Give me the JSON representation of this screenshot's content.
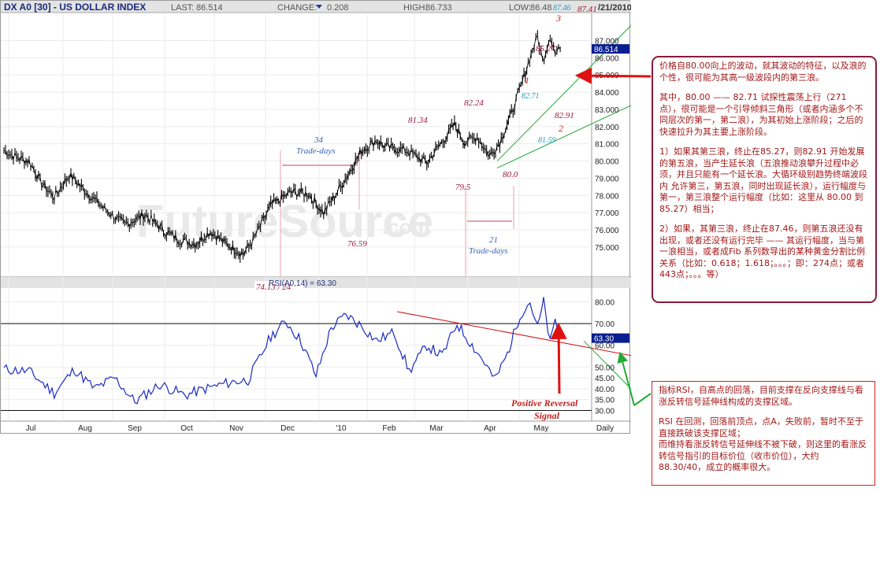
{
  "header": {
    "symbol": "DX A0 [30] - US DOLLAR INDEX",
    "last_label": "LAST:",
    "last_value": "86.514",
    "change_label": "CHANGE:",
    "change_value": "0.208",
    "high_label": "HIGH:",
    "high_value": "86.733",
    "low_label": "LOW:",
    "low_value": "86.48",
    "date": "/21/2010"
  },
  "watermark": {
    "main": "FutureSource",
    "suffix": ".com"
  },
  "colors": {
    "price": "#000000",
    "rsi": "#1a2bc2",
    "resistance": "#cc1111",
    "trend": "#22aa33",
    "annotation": "#a0183a",
    "measure": "#e6a0b0"
  },
  "chart_data": [
    {
      "type": "line",
      "name": "price",
      "x_labels": [
        "Jul",
        "Aug",
        "Sep",
        "Oct",
        "Nov",
        "Dec",
        "'10",
        "Feb",
        "Mar",
        "Apr",
        "May",
        "Daily"
      ],
      "y_ticks": [
        "87.000",
        "86.000",
        "85.000",
        "84.000",
        "83.000",
        "82.000",
        "81.000",
        "80.000",
        "79.000",
        "78.000",
        "77.000",
        "76.000",
        "75.000"
      ],
      "ylim": [
        74.4,
        87.8
      ],
      "last_tag": "86.514",
      "key_points": [
        {
          "month_index": 0.0,
          "value": 80.6
        },
        {
          "month_index": 0.25,
          "value": 80.2
        },
        {
          "month_index": 0.5,
          "value": 80.0
        },
        {
          "month_index": 0.75,
          "value": 78.7
        },
        {
          "month_index": 1.0,
          "value": 77.9
        },
        {
          "month_index": 1.3,
          "value": 79.2
        },
        {
          "month_index": 1.6,
          "value": 78.3
        },
        {
          "month_index": 2.0,
          "value": 77.2
        },
        {
          "month_index": 2.4,
          "value": 76.3
        },
        {
          "month_index": 2.8,
          "value": 76.9
        },
        {
          "month_index": 3.2,
          "value": 75.9
        },
        {
          "month_index": 3.5,
          "value": 75.4
        },
        {
          "month_index": 3.8,
          "value": 75.2
        },
        {
          "month_index": 4.1,
          "value": 75.9
        },
        {
          "month_index": 4.4,
          "value": 75.2
        },
        {
          "month_index": 4.75,
          "value": 74.6
        },
        {
          "month_index": 4.95,
          "value": 75.4
        },
        {
          "month_index": 5.3,
          "value": 77.4
        },
        {
          "month_index": 5.7,
          "value": 78.2
        },
        {
          "month_index": 6.05,
          "value": 78.1
        },
        {
          "month_index": 6.35,
          "value": 77.0
        },
        {
          "month_index": 6.75,
          "value": 78.8
        },
        {
          "month_index": 7.1,
          "value": 80.6
        },
        {
          "month_index": 7.4,
          "value": 81.2
        },
        {
          "month_index": 7.6,
          "value": 80.8
        },
        {
          "month_index": 8.0,
          "value": 80.6
        },
        {
          "month_index": 8.4,
          "value": 79.9
        },
        {
          "month_index": 8.75,
          "value": 81.3
        },
        {
          "month_index": 8.95,
          "value": 82.1
        },
        {
          "month_index": 9.15,
          "value": 81.1
        },
        {
          "month_index": 9.4,
          "value": 81.4
        },
        {
          "month_index": 9.65,
          "value": 80.3
        },
        {
          "month_index": 9.85,
          "value": 81.1
        },
        {
          "month_index": 10.05,
          "value": 82.5
        },
        {
          "month_index": 10.3,
          "value": 84.6
        },
        {
          "month_index": 10.5,
          "value": 86.5
        },
        {
          "month_index": 10.6,
          "value": 87.2
        },
        {
          "month_index": 10.7,
          "value": 85.8
        },
        {
          "month_index": 10.85,
          "value": 87.3
        },
        {
          "month_index": 10.95,
          "value": 86.2
        },
        {
          "month_index": 11.05,
          "value": 86.5
        }
      ],
      "annotations": [
        {
          "text": "74.13 / 24",
          "style": "red"
        },
        {
          "text": "76.59",
          "style": "red"
        },
        {
          "text": "79.5",
          "style": "red"
        },
        {
          "text": "80.0",
          "style": "red"
        },
        {
          "text": "81.34",
          "style": "red"
        },
        {
          "text": "82.24",
          "style": "red"
        },
        {
          "text": "85.27",
          "style": "red"
        },
        {
          "text": "87.46",
          "style": "cyan"
        },
        {
          "text": "87.41",
          "style": "red"
        },
        {
          "text": "82.71",
          "style": "cyan"
        },
        {
          "text": "82.91",
          "style": "red"
        },
        {
          "text": "81.59",
          "style": "cyan"
        },
        {
          "text": "1",
          "style": "wave"
        },
        {
          "text": "2",
          "style": "wave"
        },
        {
          "text": "3",
          "style": "wave"
        },
        {
          "text": "34",
          "style": "blue"
        },
        {
          "text": "Trade-days",
          "style": "blue"
        },
        {
          "text": "21",
          "style": "blue"
        },
        {
          "text": "Trade-days",
          "style": "blue"
        }
      ]
    },
    {
      "type": "line",
      "name": "RSI",
      "legend": "RSI(A0,14) = 63.30",
      "y_ticks": [
        "80.00",
        "70.00",
        "60.00",
        "50.00",
        "45.00",
        "40.00",
        "35.00",
        "30.00"
      ],
      "ylim": [
        28,
        82
      ],
      "last_tag": "63.30",
      "key_points": [
        {
          "month_index": 0.0,
          "value": 49
        },
        {
          "month_index": 0.5,
          "value": 48
        },
        {
          "month_index": 1.0,
          "value": 38
        },
        {
          "month_index": 1.4,
          "value": 49
        },
        {
          "month_index": 1.8,
          "value": 40
        },
        {
          "month_index": 2.2,
          "value": 45
        },
        {
          "month_index": 2.6,
          "value": 34
        },
        {
          "month_index": 3.1,
          "value": 42
        },
        {
          "month_index": 3.6,
          "value": 37
        },
        {
          "month_index": 4.0,
          "value": 40
        },
        {
          "month_index": 4.5,
          "value": 43
        },
        {
          "month_index": 4.85,
          "value": 44
        },
        {
          "month_index": 5.3,
          "value": 64
        },
        {
          "month_index": 5.6,
          "value": 71
        },
        {
          "month_index": 5.9,
          "value": 62
        },
        {
          "month_index": 6.2,
          "value": 46
        },
        {
          "month_index": 6.5,
          "value": 68
        },
        {
          "month_index": 6.8,
          "value": 74
        },
        {
          "month_index": 7.1,
          "value": 69
        },
        {
          "month_index": 7.4,
          "value": 62
        },
        {
          "month_index": 7.75,
          "value": 66
        },
        {
          "month_index": 8.05,
          "value": 48
        },
        {
          "month_index": 8.4,
          "value": 60
        },
        {
          "month_index": 8.7,
          "value": 55
        },
        {
          "month_index": 9.0,
          "value": 70
        },
        {
          "month_index": 9.3,
          "value": 60
        },
        {
          "month_index": 9.55,
          "value": 52
        },
        {
          "month_index": 9.75,
          "value": 44
        },
        {
          "month_index": 10.0,
          "value": 56
        },
        {
          "month_index": 10.25,
          "value": 74
        },
        {
          "month_index": 10.45,
          "value": 80
        },
        {
          "month_index": 10.6,
          "value": 68
        },
        {
          "month_index": 10.72,
          "value": 80
        },
        {
          "month_index": 10.85,
          "value": 61
        },
        {
          "month_index": 10.95,
          "value": 71
        },
        {
          "month_index": 11.05,
          "value": 63.3
        }
      ],
      "reference_lines": [
        70,
        30
      ],
      "annotations": [
        {
          "text": "Positive Reversal",
          "style": "signal"
        },
        {
          "text": "Signal",
          "style": "signal"
        }
      ]
    }
  ],
  "notes": {
    "note1": [
      "价格自80.00向上的波动，就其波动的特征，以及浪的个性，很可能为其高一级波段内的第三浪。",
      "其中，80.00 —— 82.71 试探性震荡上行（271 点），很可能是一个引导倾斜三角形（或者内涵多个不同层次的第一，第二浪），为其初始上涨阶段；之后的快速拉升为其主要上涨阶段。",
      "1）如果其第三浪，终止在85.27，则82.91 开始发展的第五浪，当产生延长浪（五浪推动浪攀升过程中必须，并且只能有一个延长浪。大循环级别趋势终端波段内 允许第三，第五浪，同时出现延长浪），运行幅度与第一，第三浪整个运行幅度（比如：这里从 80.00 到85.27）相当；",
      "2）如果，其第三浪，终止在87.46，则第五浪还没有出现，或者还没有运行完毕 —— 其运行幅度，当与第一浪相当，或者成Fib 系列数导出的某种黄金分割比例关系（比如：0.618；1.618；。。。；即：274点；或者443点；。。。等）"
    ],
    "note2": [
      "指标RSI，自高点的回落，目前支撑在反向支撑线与看涨反转信号延伸线构成的支撑区域。",
      "RSI 在回测，回落前顶点，点A，失败前，暂时不至于直接跌破该支撑区域；",
      "而维持看涨反转信号延伸线不被下破，则这里的看涨反转信号指引的目标价位（收市价位），大约 88.30/40，成立的概率很大。"
    ]
  }
}
